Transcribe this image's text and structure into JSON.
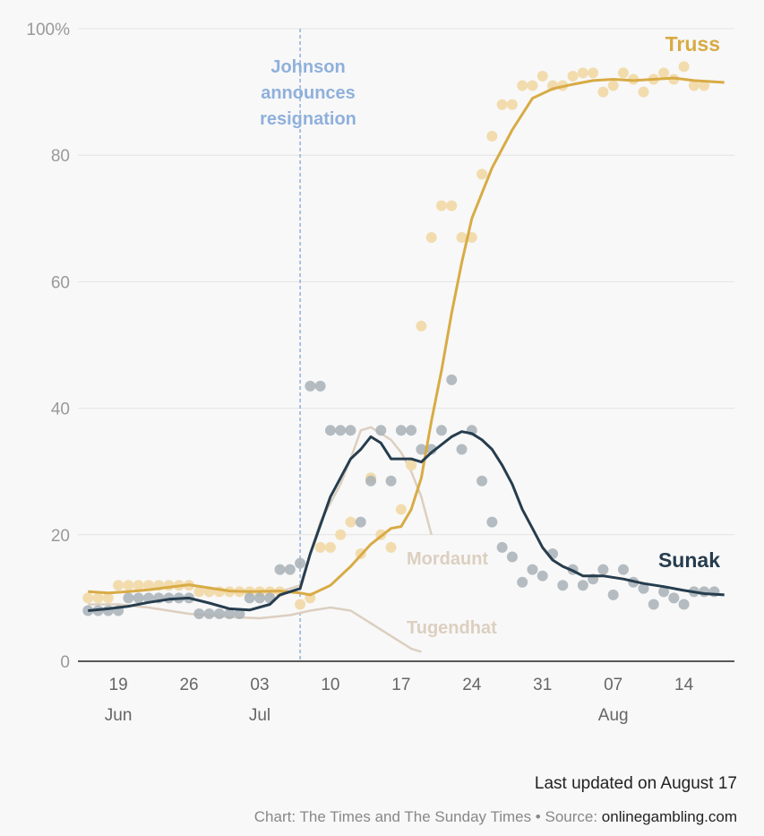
{
  "chart_data": {
    "type": "line",
    "title": "",
    "xlabel": "",
    "ylabel": "",
    "ylim": [
      0,
      100
    ],
    "y_ticks": [
      0,
      20,
      40,
      60,
      80,
      100
    ],
    "y_tick_labels": [
      "0",
      "20",
      "40",
      "60",
      "80",
      "100%"
    ],
    "x_range": [
      "2022-06-15",
      "2022-08-19"
    ],
    "x_ticks": [
      {
        "date": "2022-06-19",
        "label": "19"
      },
      {
        "date": "2022-06-26",
        "label": "26"
      },
      {
        "date": "2022-07-03",
        "label": "03"
      },
      {
        "date": "2022-07-10",
        "label": "10"
      },
      {
        "date": "2022-07-17",
        "label": "17"
      },
      {
        "date": "2022-07-24",
        "label": "24"
      },
      {
        "date": "2022-07-31",
        "label": "31"
      },
      {
        "date": "2022-08-07",
        "label": "07"
      },
      {
        "date": "2022-08-14",
        "label": "14"
      }
    ],
    "month_labels": [
      {
        "date": "2022-06-19",
        "label": "Jun"
      },
      {
        "date": "2022-07-03",
        "label": "Jul"
      },
      {
        "date": "2022-08-07",
        "label": "Aug"
      }
    ],
    "grid": true,
    "annotation": {
      "date": "2022-07-07",
      "text": [
        "Johnson",
        "announces",
        "resignation"
      ],
      "color": "#8fb0dc"
    },
    "colors": {
      "truss": "#d8ab45",
      "truss_dots": "#f2dcae",
      "sunak": "#263d4e",
      "sunak_dots": "#a8b2b7",
      "minor": "#dccfc0",
      "grid": "#e3e3e3",
      "annotation": "#8fb0dc"
    },
    "series": [
      {
        "name": "Truss",
        "trend": [
          [
            "2022-06-16",
            11.0
          ],
          [
            "2022-06-18",
            10.8
          ],
          [
            "2022-06-20",
            11.0
          ],
          [
            "2022-06-22",
            11.3
          ],
          [
            "2022-06-24",
            11.7
          ],
          [
            "2022-06-26",
            12.1
          ],
          [
            "2022-06-28",
            11.6
          ],
          [
            "2022-06-30",
            11.1
          ],
          [
            "2022-07-02",
            11.0
          ],
          [
            "2022-07-05",
            11.1
          ],
          [
            "2022-07-07",
            10.8
          ],
          [
            "2022-07-08",
            10.5
          ],
          [
            "2022-07-10",
            12.0
          ],
          [
            "2022-07-12",
            15.0
          ],
          [
            "2022-07-14",
            18.5
          ],
          [
            "2022-07-16",
            21.0
          ],
          [
            "2022-07-17",
            21.3
          ],
          [
            "2022-07-18",
            24.0
          ],
          [
            "2022-07-19",
            29.0
          ],
          [
            "2022-07-20",
            38.0
          ],
          [
            "2022-07-21",
            46.0
          ],
          [
            "2022-07-22",
            55.0
          ],
          [
            "2022-07-23",
            63.0
          ],
          [
            "2022-07-24",
            70.0
          ],
          [
            "2022-07-26",
            78.0
          ],
          [
            "2022-07-28",
            84.0
          ],
          [
            "2022-07-30",
            89.0
          ],
          [
            "2022-08-01",
            90.5
          ],
          [
            "2022-08-03",
            91.2
          ],
          [
            "2022-08-05",
            91.8
          ],
          [
            "2022-08-07",
            92.0
          ],
          [
            "2022-08-09",
            91.8
          ],
          [
            "2022-08-11",
            92.0
          ],
          [
            "2022-08-13",
            92.2
          ],
          [
            "2022-08-15",
            91.8
          ],
          [
            "2022-08-18",
            91.5
          ]
        ],
        "points": [
          [
            "2022-06-16",
            10
          ],
          [
            "2022-06-17",
            10
          ],
          [
            "2022-06-18",
            10
          ],
          [
            "2022-06-19",
            12
          ],
          [
            "2022-06-20",
            12
          ],
          [
            "2022-06-21",
            12
          ],
          [
            "2022-06-22",
            12
          ],
          [
            "2022-06-23",
            12
          ],
          [
            "2022-06-24",
            12
          ],
          [
            "2022-06-25",
            12
          ],
          [
            "2022-06-26",
            12
          ],
          [
            "2022-06-27",
            11
          ],
          [
            "2022-06-28",
            11
          ],
          [
            "2022-06-29",
            11
          ],
          [
            "2022-06-30",
            11
          ],
          [
            "2022-07-01",
            11
          ],
          [
            "2022-07-02",
            11
          ],
          [
            "2022-07-03",
            11
          ],
          [
            "2022-07-04",
            11
          ],
          [
            "2022-07-05",
            11
          ],
          [
            "2022-07-07",
            9
          ],
          [
            "2022-07-08",
            10
          ],
          [
            "2022-07-09",
            18
          ],
          [
            "2022-07-10",
            18
          ],
          [
            "2022-07-11",
            20
          ],
          [
            "2022-07-12",
            22
          ],
          [
            "2022-07-13",
            17
          ],
          [
            "2022-07-14",
            29
          ],
          [
            "2022-07-15",
            20
          ],
          [
            "2022-07-16",
            18
          ],
          [
            "2022-07-17",
            24
          ],
          [
            "2022-07-18",
            31
          ],
          [
            "2022-07-19",
            53
          ],
          [
            "2022-07-20",
            67
          ],
          [
            "2022-07-21",
            72
          ],
          [
            "2022-07-22",
            72
          ],
          [
            "2022-07-23",
            67
          ],
          [
            "2022-07-24",
            67
          ],
          [
            "2022-07-25",
            77
          ],
          [
            "2022-07-26",
            83
          ],
          [
            "2022-07-27",
            88
          ],
          [
            "2022-07-28",
            88
          ],
          [
            "2022-07-29",
            91
          ],
          [
            "2022-07-30",
            91
          ],
          [
            "2022-07-31",
            92.5
          ],
          [
            "2022-08-01",
            91
          ],
          [
            "2022-08-02",
            91
          ],
          [
            "2022-08-03",
            92.5
          ],
          [
            "2022-08-04",
            93
          ],
          [
            "2022-08-05",
            93
          ],
          [
            "2022-08-06",
            90
          ],
          [
            "2022-08-07",
            91
          ],
          [
            "2022-08-08",
            93
          ],
          [
            "2022-08-09",
            92
          ],
          [
            "2022-08-10",
            90
          ],
          [
            "2022-08-11",
            92
          ],
          [
            "2022-08-12",
            93
          ],
          [
            "2022-08-13",
            92
          ],
          [
            "2022-08-14",
            94
          ],
          [
            "2022-08-15",
            91
          ],
          [
            "2022-08-16",
            91
          ]
        ]
      },
      {
        "name": "Sunak",
        "trend": [
          [
            "2022-06-16",
            8.0
          ],
          [
            "2022-06-18",
            8.3
          ],
          [
            "2022-06-20",
            8.7
          ],
          [
            "2022-06-22",
            9.3
          ],
          [
            "2022-06-24",
            9.8
          ],
          [
            "2022-06-26",
            10.0
          ],
          [
            "2022-06-28",
            9.2
          ],
          [
            "2022-06-30",
            8.3
          ],
          [
            "2022-07-02",
            8.1
          ],
          [
            "2022-07-04",
            9.0
          ],
          [
            "2022-07-05",
            10.5
          ],
          [
            "2022-07-07",
            11.5
          ],
          [
            "2022-07-08",
            17.0
          ],
          [
            "2022-07-10",
            26.0
          ],
          [
            "2022-07-12",
            32.0
          ],
          [
            "2022-07-13",
            33.5
          ],
          [
            "2022-07-14",
            35.5
          ],
          [
            "2022-07-15",
            34.5
          ],
          [
            "2022-07-16",
            32.0
          ],
          [
            "2022-07-18",
            32.0
          ],
          [
            "2022-07-19",
            31.5
          ],
          [
            "2022-07-20",
            33.0
          ],
          [
            "2022-07-22",
            35.5
          ],
          [
            "2022-07-23",
            36.3
          ],
          [
            "2022-07-24",
            36.0
          ],
          [
            "2022-07-25",
            35.0
          ],
          [
            "2022-07-26",
            33.5
          ],
          [
            "2022-07-27",
            31.0
          ],
          [
            "2022-07-28",
            28.0
          ],
          [
            "2022-07-29",
            24.0
          ],
          [
            "2022-07-30",
            21.0
          ],
          [
            "2022-07-31",
            18.0
          ],
          [
            "2022-08-01",
            16.0
          ],
          [
            "2022-08-02",
            15.0
          ],
          [
            "2022-08-03",
            14.3
          ],
          [
            "2022-08-04",
            13.5
          ],
          [
            "2022-08-06",
            13.5
          ],
          [
            "2022-08-08",
            13.0
          ],
          [
            "2022-08-10",
            12.3
          ],
          [
            "2022-08-12",
            11.8
          ],
          [
            "2022-08-14",
            11.2
          ],
          [
            "2022-08-16",
            10.7
          ],
          [
            "2022-08-18",
            10.5
          ]
        ],
        "points": [
          [
            "2022-06-16",
            8
          ],
          [
            "2022-06-17",
            8
          ],
          [
            "2022-06-18",
            8
          ],
          [
            "2022-06-19",
            8
          ],
          [
            "2022-06-20",
            10
          ],
          [
            "2022-06-21",
            10
          ],
          [
            "2022-06-22",
            10
          ],
          [
            "2022-06-23",
            10
          ],
          [
            "2022-06-24",
            10
          ],
          [
            "2022-06-25",
            10
          ],
          [
            "2022-06-26",
            10
          ],
          [
            "2022-06-27",
            7.5
          ],
          [
            "2022-06-28",
            7.5
          ],
          [
            "2022-06-29",
            7.5
          ],
          [
            "2022-06-30",
            7.5
          ],
          [
            "2022-07-01",
            7.5
          ],
          [
            "2022-07-02",
            10
          ],
          [
            "2022-07-03",
            10
          ],
          [
            "2022-07-04",
            10
          ],
          [
            "2022-07-05",
            14.5
          ],
          [
            "2022-07-06",
            14.5
          ],
          [
            "2022-07-07",
            15.5
          ],
          [
            "2022-07-08",
            43.5
          ],
          [
            "2022-07-09",
            43.5
          ],
          [
            "2022-07-10",
            36.5
          ],
          [
            "2022-07-11",
            36.5
          ],
          [
            "2022-07-12",
            36.5
          ],
          [
            "2022-07-13",
            22
          ],
          [
            "2022-07-14",
            28.5
          ],
          [
            "2022-07-15",
            36.5
          ],
          [
            "2022-07-16",
            28.5
          ],
          [
            "2022-07-17",
            36.5
          ],
          [
            "2022-07-18",
            36.5
          ],
          [
            "2022-07-19",
            33.5
          ],
          [
            "2022-07-20",
            33.5
          ],
          [
            "2022-07-21",
            36.5
          ],
          [
            "2022-07-22",
            44.5
          ],
          [
            "2022-07-23",
            33.5
          ],
          [
            "2022-07-24",
            36.5
          ],
          [
            "2022-07-25",
            28.5
          ],
          [
            "2022-07-26",
            22
          ],
          [
            "2022-07-27",
            18
          ],
          [
            "2022-07-28",
            16.5
          ],
          [
            "2022-07-29",
            12.5
          ],
          [
            "2022-07-30",
            14.5
          ],
          [
            "2022-07-31",
            13.5
          ],
          [
            "2022-08-01",
            17
          ],
          [
            "2022-08-02",
            12
          ],
          [
            "2022-08-03",
            14.5
          ],
          [
            "2022-08-04",
            12
          ],
          [
            "2022-08-05",
            13
          ],
          [
            "2022-08-06",
            14.5
          ],
          [
            "2022-08-07",
            10.5
          ],
          [
            "2022-08-08",
            14.5
          ],
          [
            "2022-08-09",
            12.5
          ],
          [
            "2022-08-10",
            11.5
          ],
          [
            "2022-08-11",
            9
          ],
          [
            "2022-08-12",
            11
          ],
          [
            "2022-08-13",
            10
          ],
          [
            "2022-08-14",
            9
          ],
          [
            "2022-08-15",
            11
          ],
          [
            "2022-08-16",
            11
          ],
          [
            "2022-08-17",
            11
          ]
        ]
      },
      {
        "name": "Mordaunt",
        "trend": [
          [
            "2022-07-05",
            11.0
          ],
          [
            "2022-07-07",
            12.0
          ],
          [
            "2022-07-09",
            22.0
          ],
          [
            "2022-07-11",
            28.0
          ],
          [
            "2022-07-12",
            32.0
          ],
          [
            "2022-07-13",
            36.5
          ],
          [
            "2022-07-14",
            37.0
          ],
          [
            "2022-07-15",
            36.0
          ],
          [
            "2022-07-16",
            35.0
          ],
          [
            "2022-07-17",
            33.0
          ],
          [
            "2022-07-18",
            30.0
          ],
          [
            "2022-07-19",
            26.0
          ],
          [
            "2022-07-20",
            20.0
          ]
        ]
      },
      {
        "name": "Tugendhat",
        "trend": [
          [
            "2022-06-16",
            9.0
          ],
          [
            "2022-06-19",
            9.0
          ],
          [
            "2022-06-22",
            8.5
          ],
          [
            "2022-06-26",
            7.5
          ],
          [
            "2022-06-30",
            7.0
          ],
          [
            "2022-07-03",
            6.8
          ],
          [
            "2022-07-06",
            7.3
          ],
          [
            "2022-07-08",
            8.0
          ],
          [
            "2022-07-10",
            8.5
          ],
          [
            "2022-07-12",
            8.0
          ],
          [
            "2022-07-14",
            6.0
          ],
          [
            "2022-07-16",
            4.0
          ],
          [
            "2022-07-18",
            2.0
          ],
          [
            "2022-07-19",
            1.5
          ]
        ]
      }
    ],
    "labels": {
      "truss": "Truss",
      "sunak": "Sunak",
      "mordaunt": "Mordaunt",
      "tugendhat": "Tugendhat"
    }
  },
  "footer": {
    "updated": "Last updated on August 17",
    "credit": "Chart: The Times and The Sunday Times • Source: ",
    "source": "onlinegambling.com"
  }
}
